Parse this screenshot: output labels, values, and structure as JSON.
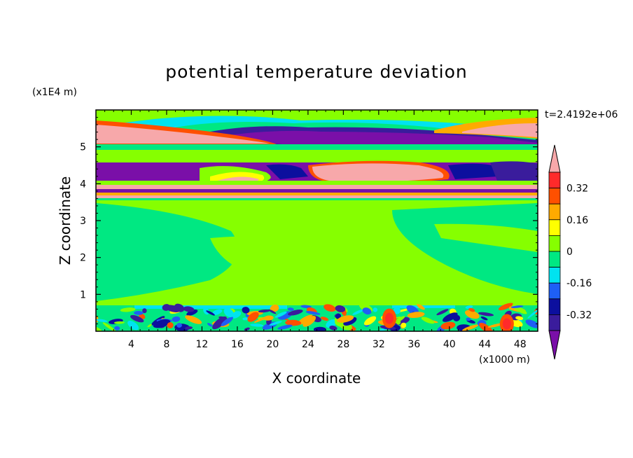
{
  "chart_data": {
    "type": "heatmap",
    "title": "potential temperature deviation",
    "time_label": "t=2.4192e+06",
    "xlabel": "X coordinate",
    "ylabel": "Z coordinate",
    "x_unit": "(x1000 m)",
    "y_unit": "(x1E4 m)",
    "xlim": [
      0,
      50
    ],
    "ylim": [
      0,
      6
    ],
    "x_ticks": [
      "4",
      "8",
      "12",
      "16",
      "20",
      "24",
      "28",
      "32",
      "36",
      "40",
      "44",
      "48"
    ],
    "y_ticks": [
      "1",
      "2",
      "3",
      "4",
      "5"
    ],
    "colorbar": {
      "levels": [
        -0.4,
        -0.32,
        -0.24,
        -0.16,
        -0.08,
        0,
        0.08,
        0.16,
        0.24,
        0.32,
        0.4
      ],
      "tick_labels": [
        "0.32",
        "0.16",
        "0",
        "-0.16",
        "-0.32"
      ],
      "colors": [
        "#7a0fa8",
        "#3a1c9c",
        "#0c0f9e",
        "#1e5ff5",
        "#00e3f0",
        "#00e882",
        "#86ff00",
        "#ffff00",
        "#ffaa00",
        "#ff5000",
        "#ff2a2a",
        "#f7a8aa"
      ]
    },
    "bands": [
      {
        "z": [
          5.5,
          5.9
        ],
        "description": "green/cyan upper layer",
        "level_colors": [
          "#86ff00",
          "#00e3f0"
        ]
      },
      {
        "z": [
          5.0,
          5.6
        ],
        "description": "warm pink band at edges, cold purple band center",
        "level_colors": [
          "#f7a8aa",
          "#7a0fa8"
        ]
      },
      {
        "z": [
          3.6,
          4.6
        ],
        "description": "alternating purple/pink/green layers",
        "level_colors": [
          "#7a0fa8",
          "#f7a8aa",
          "#86ff00"
        ]
      },
      {
        "z": [
          0.7,
          3.5
        ],
        "description": "near-zero green field",
        "level_colors": [
          "#86ff00",
          "#00e882"
        ]
      },
      {
        "z": [
          0.0,
          0.7
        ],
        "description": "turbulent boundary layer with mixed values",
        "level_colors": [
          "#0c0f9e",
          "#ff2a2a",
          "#86ff00"
        ]
      }
    ]
  }
}
